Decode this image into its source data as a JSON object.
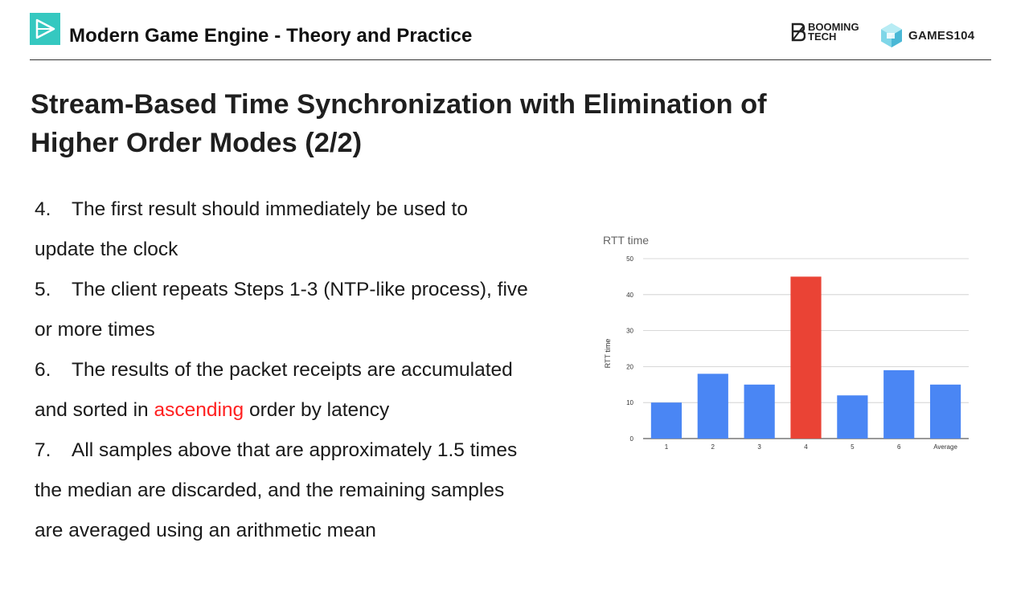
{
  "header": {
    "course_title": "Modern Game Engine - Theory and Practice",
    "brand_booming_line1": "BOOMING",
    "brand_booming_line2": "TECH",
    "brand_games": "GAMES104"
  },
  "slide": {
    "title_line1": "Stream-Based Time Synchronization with Elimination of",
    "title_line2": "Higher Order Modes (2/2)"
  },
  "steps": [
    {
      "num": "4.",
      "text_line1": "The first result should immediately be used to",
      "text_line2": "update the clock"
    },
    {
      "num": "5.",
      "text_line1": "The client repeats Steps 1-3 (NTP-like process), five",
      "text_line2": "or more times"
    },
    {
      "num": "6.",
      "text_line1": "The results of the packet receipts are accumulated",
      "text_line2_pre": "and sorted in ",
      "text_line2_highlight": "ascending",
      "text_line2_post": " order by latency"
    },
    {
      "num": "7.",
      "text_line1": "All samples above that are approximately 1.5 times",
      "text_line2": "the median are discarded, and the remaining samples",
      "text_line3": "are averaged using an arithmetic mean"
    }
  ],
  "colors": {
    "bar": "#4a86f4",
    "highlight_bar": "#ea4335",
    "highlight_text": "#ff1f1f",
    "logo": "#35c8c0"
  },
  "chart_data": {
    "type": "bar",
    "title": "RTT time",
    "xlabel": "",
    "ylabel": "RTT time",
    "categories": [
      "1",
      "2",
      "3",
      "4",
      "5",
      "6",
      "Average"
    ],
    "values": [
      10,
      18,
      15,
      45,
      12,
      19,
      15
    ],
    "highlight_index": 3,
    "ylim": [
      0,
      50
    ],
    "yticks": [
      0,
      10,
      20,
      30,
      40,
      50
    ],
    "grid": true,
    "legend": "none"
  }
}
